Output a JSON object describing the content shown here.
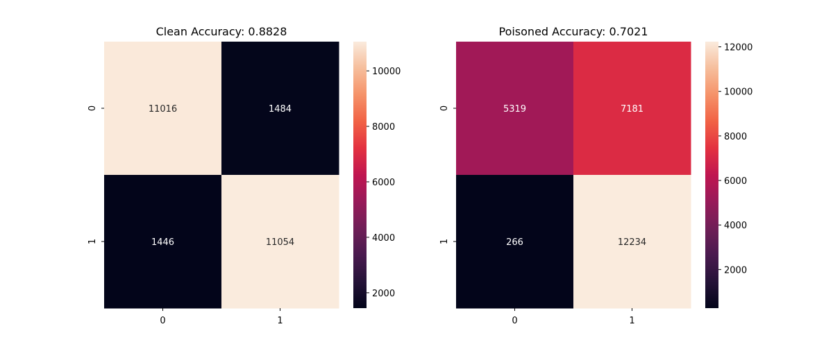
{
  "chart_data": [
    {
      "type": "heatmap",
      "title": "Clean Accuracy: 0.8828",
      "x_categories": [
        "0",
        "1"
      ],
      "y_categories": [
        "0",
        "1"
      ],
      "values": [
        [
          11016,
          1484
        ],
        [
          1446,
          11054
        ]
      ],
      "colorbar": {
        "min": 1446,
        "max": 11054,
        "ticks": [
          2000,
          4000,
          6000,
          8000,
          10000
        ]
      },
      "colormap": "rocket",
      "grid": false,
      "legend": "colorbar-right"
    },
    {
      "type": "heatmap",
      "title": "Poisoned Accuracy: 0.7021",
      "x_categories": [
        "0",
        "1"
      ],
      "y_categories": [
        "0",
        "1"
      ],
      "values": [
        [
          5319,
          7181
        ],
        [
          266,
          12234
        ]
      ],
      "colorbar": {
        "min": 266,
        "max": 12234,
        "ticks": [
          2000,
          4000,
          6000,
          8000,
          10000,
          12000
        ]
      },
      "colormap": "rocket",
      "grid": false,
      "legend": "colorbar-right"
    }
  ]
}
